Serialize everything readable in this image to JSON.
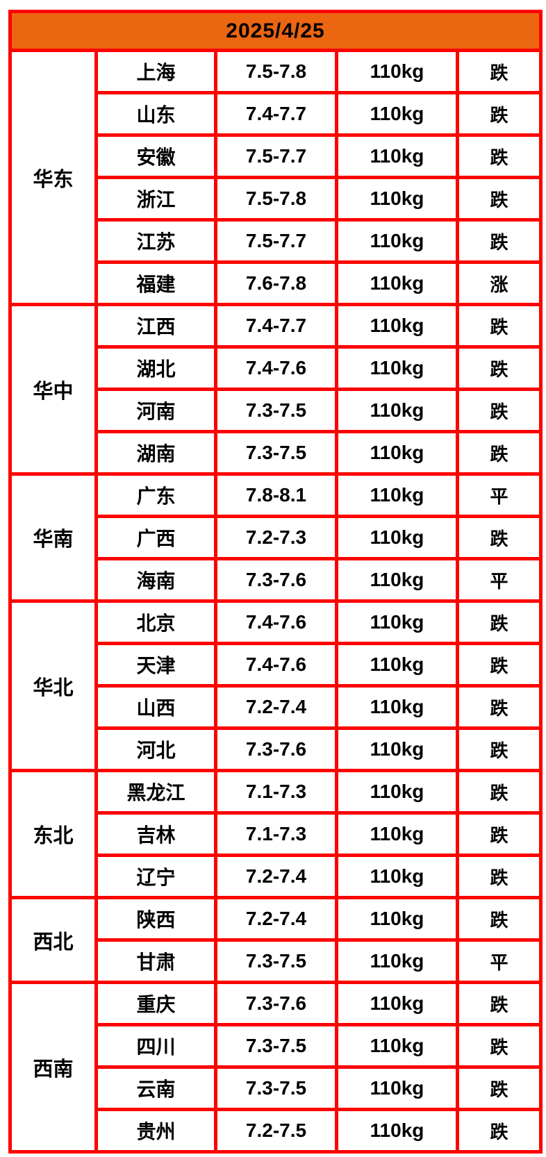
{
  "header": {
    "date": "2025/4/25"
  },
  "colors": {
    "header_orange": "#EC6511",
    "border_red": "#FF0000",
    "down_green": "#2FD514",
    "up_red": "#FA3C5A",
    "flat_black": "#000000"
  },
  "regions": [
    {
      "name": "华东",
      "rows": [
        {
          "province": "上海",
          "price": "7.5-7.8",
          "weight": "110kg",
          "trend": "跌",
          "dir": "down"
        },
        {
          "province": "山东",
          "price": "7.4-7.7",
          "weight": "110kg",
          "trend": "跌",
          "dir": "down"
        },
        {
          "province": "安徽",
          "price": "7.5-7.7",
          "weight": "110kg",
          "trend": "跌",
          "dir": "down"
        },
        {
          "province": "浙江",
          "price": "7.5-7.8",
          "weight": "110kg",
          "trend": "跌",
          "dir": "down"
        },
        {
          "province": "江苏",
          "price": "7.5-7.7",
          "weight": "110kg",
          "trend": "跌",
          "dir": "down"
        },
        {
          "province": "福建",
          "price": "7.6-7.8",
          "weight": "110kg",
          "trend": "涨",
          "dir": "up"
        }
      ]
    },
    {
      "name": "华中",
      "rows": [
        {
          "province": "江西",
          "price": "7.4-7.7",
          "weight": "110kg",
          "trend": "跌",
          "dir": "down"
        },
        {
          "province": "湖北",
          "price": "7.4-7.6",
          "weight": "110kg",
          "trend": "跌",
          "dir": "down"
        },
        {
          "province": "河南",
          "price": "7.3-7.5",
          "weight": "110kg",
          "trend": "跌",
          "dir": "down"
        },
        {
          "province": "湖南",
          "price": "7.3-7.5",
          "weight": "110kg",
          "trend": "跌",
          "dir": "down"
        }
      ]
    },
    {
      "name": "华南",
      "rows": [
        {
          "province": "广东",
          "price": "7.8-8.1",
          "weight": "110kg",
          "trend": "平",
          "dir": "flat"
        },
        {
          "province": "广西",
          "price": "7.2-7.3",
          "weight": "110kg",
          "trend": "跌",
          "dir": "down"
        },
        {
          "province": "海南",
          "price": "7.3-7.6",
          "weight": "110kg",
          "trend": "平",
          "dir": "flat"
        }
      ]
    },
    {
      "name": "华北",
      "rows": [
        {
          "province": "北京",
          "price": "7.4-7.6",
          "weight": "110kg",
          "trend": "跌",
          "dir": "down"
        },
        {
          "province": "天津",
          "price": "7.4-7.6",
          "weight": "110kg",
          "trend": "跌",
          "dir": "down"
        },
        {
          "province": "山西",
          "price": "7.2-7.4",
          "weight": "110kg",
          "trend": "跌",
          "dir": "down"
        },
        {
          "province": "河北",
          "price": "7.3-7.6",
          "weight": "110kg",
          "trend": "跌",
          "dir": "down"
        }
      ]
    },
    {
      "name": "东北",
      "rows": [
        {
          "province": "黑龙江",
          "price": "7.1-7.3",
          "weight": "110kg",
          "trend": "跌",
          "dir": "down"
        },
        {
          "province": "吉林",
          "price": "7.1-7.3",
          "weight": "110kg",
          "trend": "跌",
          "dir": "down"
        },
        {
          "province": "辽宁",
          "price": "7.2-7.4",
          "weight": "110kg",
          "trend": "跌",
          "dir": "down"
        }
      ]
    },
    {
      "name": "西北",
      "rows": [
        {
          "province": "陕西",
          "price": "7.2-7.4",
          "weight": "110kg",
          "trend": "跌",
          "dir": "down"
        },
        {
          "province": "甘肃",
          "price": "7.3-7.5",
          "weight": "110kg",
          "trend": "平",
          "dir": "flat"
        }
      ]
    },
    {
      "name": "西南",
      "rows": [
        {
          "province": "重庆",
          "price": "7.3-7.6",
          "weight": "110kg",
          "trend": "跌",
          "dir": "down"
        },
        {
          "province": "四川",
          "price": "7.3-7.5",
          "weight": "110kg",
          "trend": "跌",
          "dir": "down"
        },
        {
          "province": "云南",
          "price": "7.3-7.5",
          "weight": "110kg",
          "trend": "跌",
          "dir": "down"
        },
        {
          "province": "贵州",
          "price": "7.2-7.5",
          "weight": "110kg",
          "trend": "跌",
          "dir": "down"
        }
      ]
    }
  ]
}
